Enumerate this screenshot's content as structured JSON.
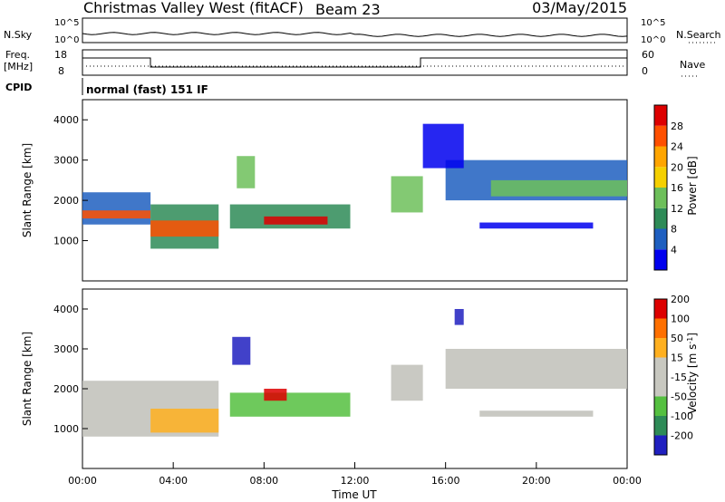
{
  "header": {
    "station": "Christmas Valley West (fitACF)",
    "beam": "Beam 23",
    "date": "03/May/2015"
  },
  "noise_panel": {
    "left_label": "N.Sky",
    "right_label": "N.Search",
    "tick_top": "10^5",
    "tick_bottom": "10^0"
  },
  "freq_panel": {
    "left_label_1": "Freq.",
    "left_label_2": "[MHz]",
    "right_label": "Nave",
    "left_ticks": [
      "18",
      "8"
    ],
    "right_ticks": [
      "60",
      "0"
    ]
  },
  "cpid": {
    "label": "CPID",
    "text": "normal (fast) 151 IF"
  },
  "colors": {
    "power": [
      "#0000ee",
      "#1e5fc0",
      "#2e8b57",
      "#6dbf5a",
      "#f5d000",
      "#ffa500",
      "#ff5000",
      "#dd0000"
    ],
    "velocity": [
      "#2020c0",
      "#2e8b57",
      "#55c040",
      "#c8c8c0",
      "#c8c8c0",
      "#ffb020",
      "#ff7000",
      "#dd0000"
    ],
    "ground_scatter": "#bfbfb8"
  },
  "chart_data": [
    {
      "type": "heatmap",
      "title": "Power",
      "ylabel": "Slant Range [km]",
      "ylim": [
        0,
        4500
      ],
      "yticks": [
        1000,
        2000,
        3000,
        4000
      ],
      "xlim": [
        "00:00",
        "24:00"
      ],
      "colorbar_label": "Power [dB]",
      "colorbar_ticks": [
        "4",
        "8",
        "12",
        "16",
        "20",
        "24",
        "28"
      ],
      "bands": [
        {
          "t0": 0.0,
          "t1": 3.0,
          "r0": 1400,
          "r1": 2200,
          "level": 1
        },
        {
          "t0": 0.0,
          "t1": 3.0,
          "r0": 1550,
          "r1": 1750,
          "level": 6
        },
        {
          "t0": 3.0,
          "t1": 6.0,
          "r0": 800,
          "r1": 1900,
          "level": 2
        },
        {
          "t0": 3.0,
          "t1": 6.0,
          "r0": 1100,
          "r1": 1500,
          "level": 6
        },
        {
          "t0": 6.5,
          "t1": 11.8,
          "r0": 1300,
          "r1": 1900,
          "level": 2
        },
        {
          "t0": 8.0,
          "t1": 10.8,
          "r0": 1400,
          "r1": 1600,
          "level": 7
        },
        {
          "t0": 6.8,
          "t1": 7.6,
          "r0": 2300,
          "r1": 3100,
          "level": 3
        },
        {
          "t0": 13.6,
          "t1": 15.0,
          "r0": 1700,
          "r1": 2600,
          "level": 3
        },
        {
          "t0": 16.0,
          "t1": 24.0,
          "r0": 2000,
          "r1": 3000,
          "level": 1
        },
        {
          "t0": 18.0,
          "t1": 24.0,
          "r0": 2100,
          "r1": 2500,
          "level": 3
        },
        {
          "t0": 17.5,
          "t1": 22.5,
          "r0": 1300,
          "r1": 1450,
          "level": 0
        },
        {
          "t0": 15.0,
          "t1": 16.8,
          "r0": 2800,
          "r1": 3900,
          "level": 0
        }
      ]
    },
    {
      "type": "heatmap",
      "title": "Velocity",
      "ylabel": "Slant Range [km]",
      "ylim": [
        0,
        4500
      ],
      "yticks": [
        1000,
        2000,
        3000,
        4000
      ],
      "xlim": [
        "00:00",
        "24:00"
      ],
      "xticks": [
        "00:00",
        "04:00",
        "08:00",
        "12:00",
        "16:00",
        "20:00",
        "00:00"
      ],
      "xlabel": "Time UT",
      "colorbar_label": "Velocity [m s-1]",
      "colorbar_ticks": [
        "200",
        "100",
        "50",
        "15",
        "-15",
        "-50",
        "-100",
        "-200"
      ],
      "bands": [
        {
          "t0": 0.0,
          "t1": 6.0,
          "r0": 800,
          "r1": 2200,
          "level": "gs"
        },
        {
          "t0": 3.0,
          "t1": 6.0,
          "r0": 900,
          "r1": 1500,
          "level": 5
        },
        {
          "t0": 6.5,
          "t1": 11.8,
          "r0": 1300,
          "r1": 1900,
          "level": 2
        },
        {
          "t0": 8.0,
          "t1": 9.0,
          "r0": 1700,
          "r1": 2000,
          "level": 7
        },
        {
          "t0": 6.6,
          "t1": 7.4,
          "r0": 2600,
          "r1": 3300,
          "level": 0
        },
        {
          "t0": 13.6,
          "t1": 15.0,
          "r0": 1700,
          "r1": 2600,
          "level": "gs"
        },
        {
          "t0": 16.0,
          "t1": 24.0,
          "r0": 2000,
          "r1": 3000,
          "level": "gs"
        },
        {
          "t0": 17.5,
          "t1": 22.5,
          "r0": 1300,
          "r1": 1450,
          "level": "gs"
        },
        {
          "t0": 16.4,
          "t1": 16.8,
          "r0": 3600,
          "r1": 4000,
          "level": 0
        }
      ]
    }
  ]
}
